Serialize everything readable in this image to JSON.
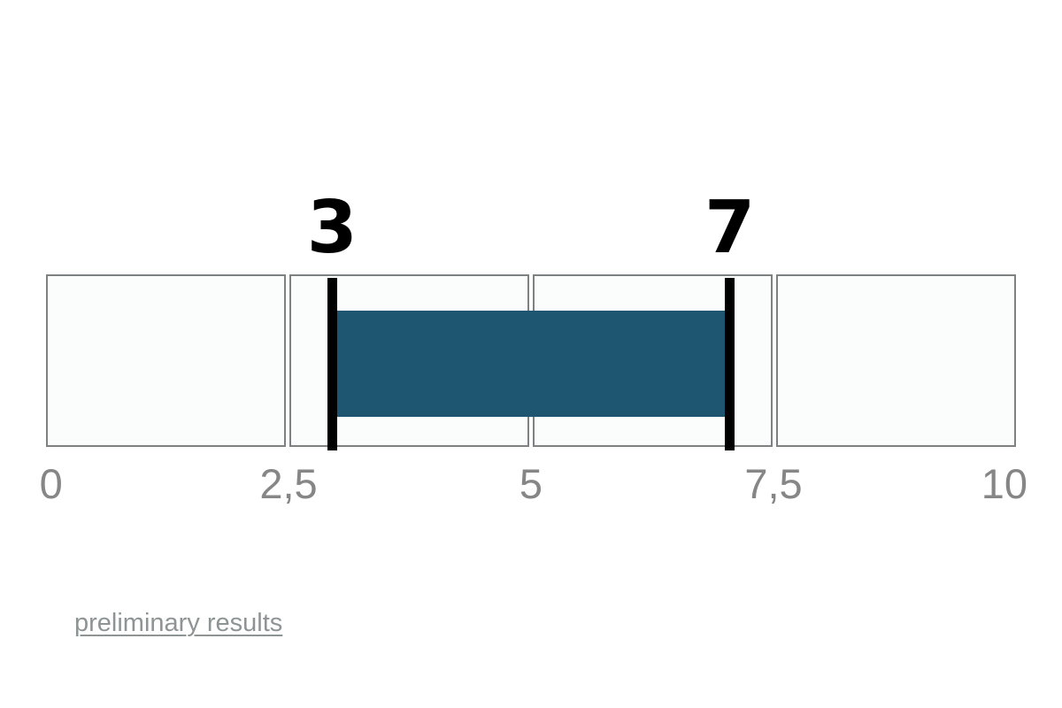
{
  "page": {
    "background": "#ffffff"
  },
  "chart_data": {
    "type": "bar",
    "subtype": "horizontal-range-gauge",
    "title": "",
    "xlabel": "",
    "ylabel": "",
    "axis": {
      "min": 0,
      "max": 10,
      "tick_values": [
        0,
        2.5,
        5,
        7.5,
        10
      ],
      "tick_labels": [
        "0",
        "2,5",
        "5",
        "7,5",
        "10"
      ],
      "decimal_separator": ","
    },
    "range": {
      "start": 3,
      "end": 7,
      "start_label": "3",
      "end_label": "7"
    },
    "layout": {
      "orientation": "horizontal",
      "segment_count": 4,
      "grid": false,
      "legend": false
    },
    "colors": {
      "bar": "#1e5570",
      "marker": "#000000",
      "segment_fill": "#fbfdfd",
      "segment_border": "#7d8181",
      "tick_text": "#868686"
    }
  },
  "footer": {
    "link_label": "preliminary results",
    "link_color": "#8e9494"
  }
}
